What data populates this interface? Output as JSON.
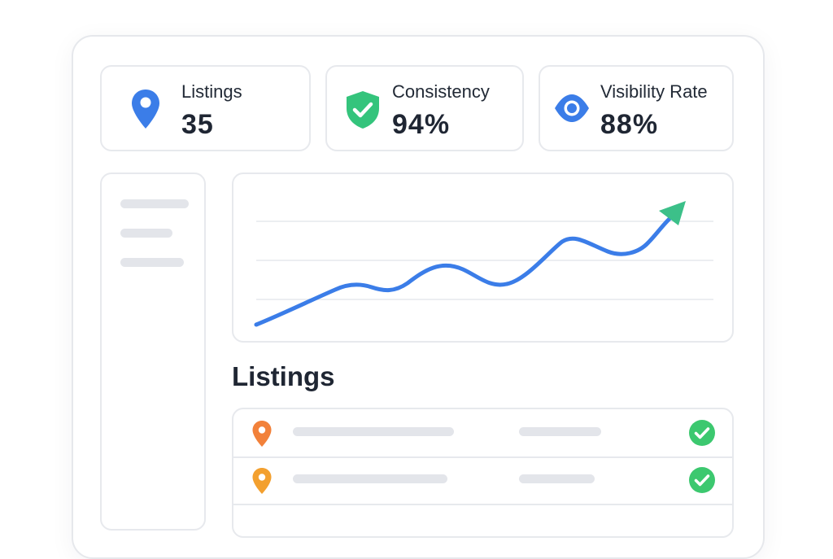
{
  "stats": [
    {
      "label": "Listings",
      "value": "35",
      "icon": "map-pin-icon",
      "color": "#3b7de8"
    },
    {
      "label": "Consistency",
      "value": "94%",
      "icon": "shield-check-icon",
      "color": "#34c47c"
    },
    {
      "label": "Visibility Rate",
      "value": "88%",
      "icon": "eye-icon",
      "color": "#3b7de8"
    }
  ],
  "chart_data": {
    "type": "line",
    "trend": "up",
    "line_color": "#3b7de8",
    "arrow_color": "#3cc089",
    "grid": true,
    "gridlines": 3
  },
  "listings": {
    "title": "Listings",
    "rows": [
      {
        "pin_icon": "map-pin-icon",
        "pin_color": "#f2813a",
        "status_icon": "check-circle-icon",
        "status_color": "#3cc86f"
      },
      {
        "pin_icon": "map-pin-icon",
        "pin_color": "#f3a02f",
        "status_icon": "check-circle-icon",
        "status_color": "#3cc86f"
      }
    ]
  }
}
